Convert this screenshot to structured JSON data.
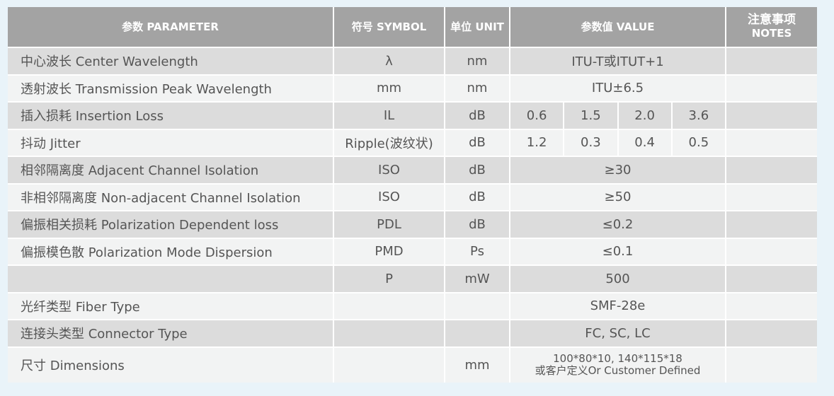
{
  "header": {
    "parameter": "参数 PARAMETER",
    "symbol": "符号 SYMBOL",
    "unit": "单位 UNIT",
    "value": "参数值 VALUE",
    "notes_cn": "注意事项",
    "notes_en": "NOTES"
  },
  "rows": [
    {
      "parameter": "中心波长 Center Wavelength",
      "symbol": "λ",
      "unit": "nm",
      "value": "ITU-T或ITUT+1",
      "notes": ""
    },
    {
      "parameter": "透射波长 Transmission Peak Wavelength",
      "symbol": "mm",
      "unit": "nm",
      "value": "ITU±6.5",
      "notes": ""
    },
    {
      "parameter": "插入损耗 Insertion Loss",
      "symbol": "IL",
      "unit": "dB",
      "values": [
        "0.6",
        "1.5",
        "2.0",
        "3.6"
      ],
      "notes": ""
    },
    {
      "parameter": "抖动 Jitter",
      "symbol": "Ripple(波纹状)",
      "unit": "dB",
      "values": [
        "1.2",
        "0.3",
        "0.4",
        "0.5"
      ],
      "notes": ""
    },
    {
      "parameter": "相邻隔离度 Adjacent Channel  Isolation",
      "symbol": "ISO",
      "unit": "dB",
      "value": "≥30",
      "notes": ""
    },
    {
      "parameter": "非相邻隔离度 Non-adjacent Channel Isolation",
      "symbol": "ISO",
      "unit": "dB",
      "value": "≥50",
      "notes": ""
    },
    {
      "parameter": "偏振相关损耗 Polarization Dependent loss",
      "symbol": "PDL",
      "unit": "dB",
      "value": "≤0.2",
      "notes": ""
    },
    {
      "parameter": "偏振模色散 Polarization Mode Dispersion",
      "symbol": "PMD",
      "unit": "Ps",
      "value": "≤0.1",
      "notes": ""
    },
    {
      "parameter": "",
      "symbol": "P",
      "unit": "mW",
      "value": "500",
      "notes": ""
    },
    {
      "parameter": "光纤类型 Fiber Type",
      "symbol": "",
      "unit": "",
      "value": "SMF-28e",
      "notes": ""
    },
    {
      "parameter": "连接头类型 Connector Type",
      "symbol": "",
      "unit": "",
      "value": "FC, SC, LC",
      "notes": ""
    },
    {
      "parameter": "尺寸 Dimensions",
      "symbol": "",
      "unit": "mm",
      "value_line1": "100*80*10, 140*115*18",
      "value_line2": "或客户定义Or Customer Defined",
      "notes": ""
    }
  ],
  "colors": {
    "header": "#a3a3a3",
    "row_dark": "#dcdcdc",
    "row_light": "#f2f3f3",
    "background": "#e9f3f9"
  }
}
